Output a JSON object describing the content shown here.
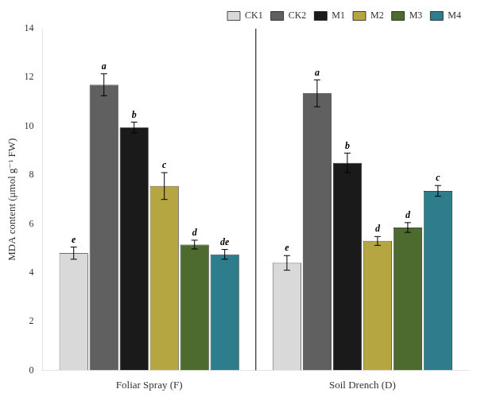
{
  "chart_data": {
    "type": "bar",
    "categories": [
      "Foliar Spray (F)",
      "Soil Drench (D)"
    ],
    "series": [
      {
        "name": "CK1",
        "color": "#d9d9d9",
        "values": [
          4.8,
          4.4
        ],
        "errors": [
          0.25,
          0.3
        ],
        "annotations": [
          "e",
          "e"
        ]
      },
      {
        "name": "CK2",
        "color": "#606060",
        "values": [
          11.7,
          11.35
        ],
        "errors": [
          0.45,
          0.55
        ],
        "annotations": [
          "a",
          "a"
        ]
      },
      {
        "name": "M1",
        "color": "#1a1a1a",
        "values": [
          9.95,
          8.5
        ],
        "errors": [
          0.22,
          0.4
        ],
        "annotations": [
          "b",
          "b"
        ]
      },
      {
        "name": "M2",
        "color": "#b5a642",
        "values": [
          7.55,
          5.3
        ],
        "errors": [
          0.55,
          0.18
        ],
        "annotations": [
          "c",
          "d"
        ]
      },
      {
        "name": "M3",
        "color": "#4d6b2e",
        "values": [
          5.15,
          5.85
        ],
        "errors": [
          0.18,
          0.2
        ],
        "annotations": [
          "d",
          "d"
        ]
      },
      {
        "name": "M4",
        "color": "#2e7d8c",
        "values": [
          4.75,
          7.35
        ],
        "errors": [
          0.2,
          0.22
        ],
        "annotations": [
          "de",
          "c"
        ]
      }
    ],
    "ylabel": "MDA content (μmol g⁻¹ FW)",
    "ylim": [
      0,
      14
    ],
    "yticks": [
      0,
      2,
      4,
      6,
      8,
      10,
      12,
      14
    ],
    "grid": false,
    "legend": "upper right"
  }
}
